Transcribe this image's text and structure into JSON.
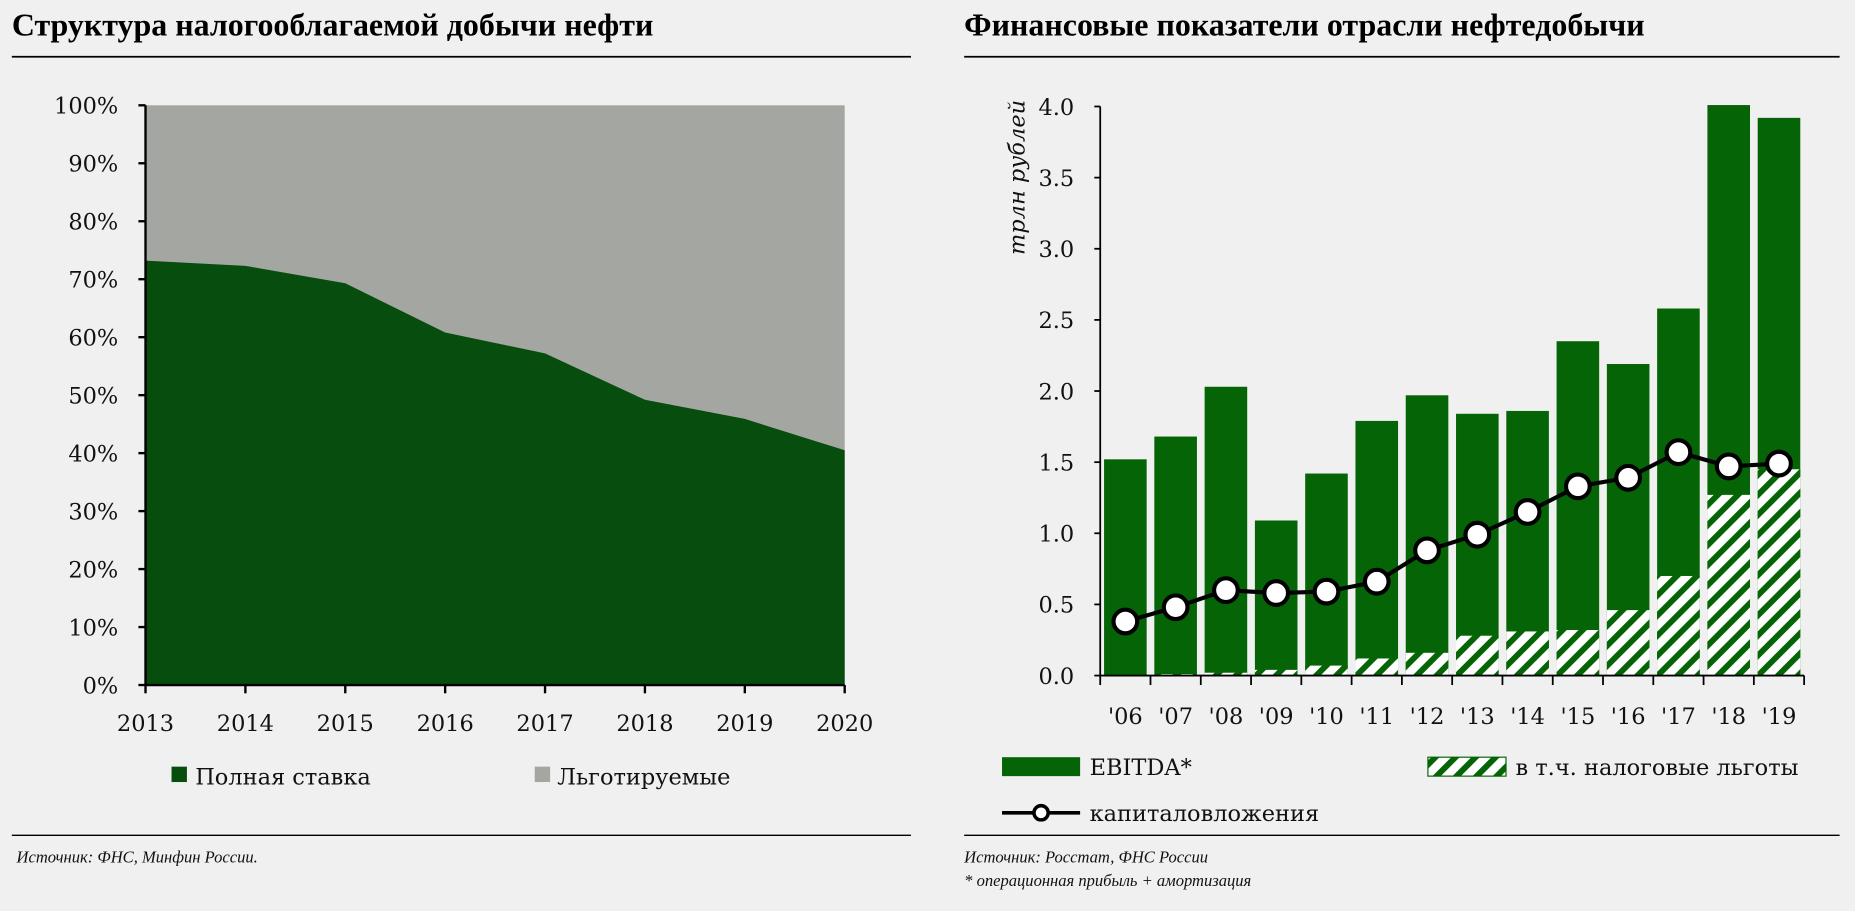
{
  "colors": {
    "full_rate": "#064d0e",
    "preferential": "#a4a6a2",
    "ebitda": "#056405",
    "hatch_bg": "#ffffff",
    "capex_line": "#000000"
  },
  "left": {
    "title": "Структура налогооблагаемой добычи нефти",
    "source": "Источник: ФНС, Минфин России.",
    "chart_data": {
      "type": "area",
      "stacked": true,
      "categories": [
        "2013",
        "2014",
        "2015",
        "2016",
        "2017",
        "2018",
        "2019",
        "2020"
      ],
      "series": [
        {
          "name": "Полная ставка",
          "values": [
            73.2,
            72.3,
            69.3,
            60.8,
            57.2,
            49.2,
            45.9,
            40.5
          ]
        },
        {
          "name": "Льготируемые",
          "values": [
            26.8,
            27.7,
            30.7,
            39.2,
            42.8,
            50.8,
            54.1,
            59.5
          ]
        }
      ],
      "ylim": [
        0,
        100
      ],
      "yticks": [
        "0%",
        "10%",
        "20%",
        "30%",
        "40%",
        "50%",
        "60%",
        "70%",
        "80%",
        "90%",
        "100%"
      ],
      "grid": false,
      "legend": "bottom"
    }
  },
  "right": {
    "title": "Финансовые показатели отрасли нефтедобычи",
    "source": "Источник: Росстат, ФНС России",
    "footnote": "* операционная прибыль + амортизация",
    "chart_data": {
      "type": "bar",
      "ylabel": "трлн рублей",
      "categories": [
        "'06",
        "'07",
        "'08",
        "'09",
        "'10",
        "'11",
        "'12",
        "'13",
        "'14",
        "'15",
        "'16",
        "'17",
        "'18",
        "'19"
      ],
      "series": [
        {
          "name": "EBITDA*",
          "type": "bar",
          "values": [
            1.52,
            1.68,
            2.03,
            1.09,
            1.42,
            1.79,
            1.97,
            1.84,
            1.86,
            2.35,
            2.19,
            2.58,
            4.01,
            3.92
          ]
        },
        {
          "name": "в т.ч. налоговые льготы",
          "type": "bar-hatched",
          "values": [
            0.0,
            0.01,
            0.02,
            0.04,
            0.07,
            0.12,
            0.16,
            0.28,
            0.31,
            0.32,
            0.46,
            0.7,
            1.27,
            1.45
          ]
        },
        {
          "name": "капиталовложения",
          "type": "line",
          "values": [
            0.38,
            0.48,
            0.6,
            0.58,
            0.59,
            0.66,
            0.88,
            0.99,
            1.15,
            1.33,
            1.39,
            1.57,
            1.47,
            1.49
          ]
        }
      ],
      "ylim": [
        0,
        4.0
      ],
      "yticks": [
        "0.0",
        "0.5",
        "1.0",
        "1.5",
        "2.0",
        "2.5",
        "3.0",
        "3.5",
        "4.0"
      ],
      "grid": false,
      "legend": "bottom"
    }
  }
}
